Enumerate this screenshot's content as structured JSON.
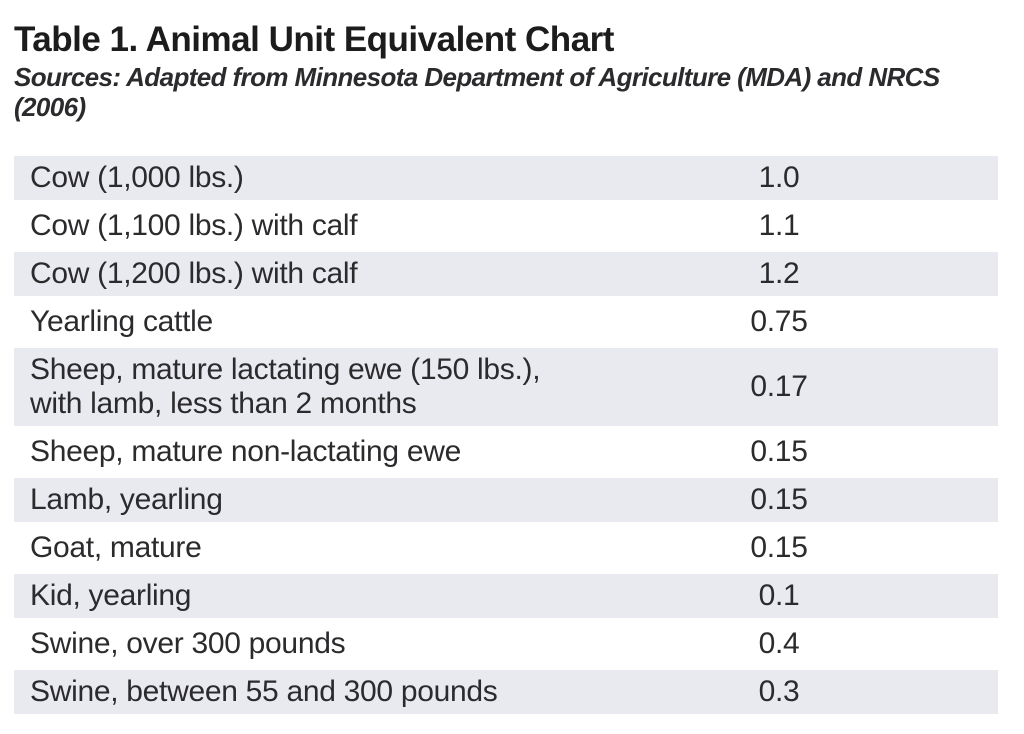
{
  "colors": {
    "shaded_row": "#e9e9f0",
    "title_text": "#1c1c1c",
    "body_text": "#2b2b2e",
    "background": "#ffffff"
  },
  "chart_data": {
    "type": "table",
    "title": "Table 1. Animal Unit Equivalent Chart",
    "source_note": "Sources: Adapted from Minnesota Department of Agriculture (MDA) and NRCS (2006)",
    "columns": [
      "animal",
      "animal_units"
    ],
    "rows": [
      {
        "animal": "Cow (1,000 lbs.)",
        "animal_units": "1.0"
      },
      {
        "animal": "Cow (1,100 lbs.) with calf",
        "animal_units": "1.1"
      },
      {
        "animal": "Cow (1,200 lbs.) with calf",
        "animal_units": "1.2"
      },
      {
        "animal": "Yearling cattle",
        "animal_units": "0.75"
      },
      {
        "animal": "Sheep, mature lactating ewe (150 lbs.),\nwith lamb, less than 2 months",
        "animal_units": "0.17"
      },
      {
        "animal": "Sheep, mature non-lactating ewe",
        "animal_units": "0.15"
      },
      {
        "animal": "Lamb, yearling",
        "animal_units": "0.15"
      },
      {
        "animal": "Goat, mature",
        "animal_units": "0.15"
      },
      {
        "animal": "Kid, yearling",
        "animal_units": "0.1"
      },
      {
        "animal": "Swine, over 300 pounds",
        "animal_units": "0.4"
      },
      {
        "animal": "Swine, between 55 and 300 pounds",
        "animal_units": "0.3"
      }
    ]
  }
}
